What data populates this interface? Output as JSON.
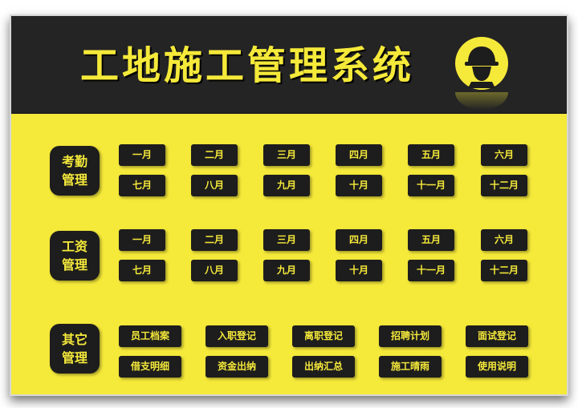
{
  "header": {
    "title": "工地施工管理系统"
  },
  "sections": [
    {
      "label": "考勤管理",
      "buttons": [
        "一月",
        "二月",
        "三月",
        "四月",
        "五月",
        "六月",
        "七月",
        "八月",
        "九月",
        "十月",
        "十一月",
        "十二月"
      ]
    },
    {
      "label": "工资管理",
      "buttons": [
        "一月",
        "二月",
        "三月",
        "四月",
        "五月",
        "六月",
        "七月",
        "八月",
        "九月",
        "十月",
        "十一月",
        "十二月"
      ]
    },
    {
      "label": "其它管理",
      "buttons": [
        "员工档案",
        "入职登记",
        "离职登记",
        "招聘计划",
        "面试登记",
        "借支明细",
        "资金出纳",
        "出纳汇总",
        "施工晴雨",
        "使用说明"
      ]
    }
  ],
  "icons": {
    "header_badge": "worker-helmet-icon"
  },
  "colors": {
    "accent": "#f5e93a",
    "dark": "#1d1d1d",
    "header": "#242424"
  }
}
